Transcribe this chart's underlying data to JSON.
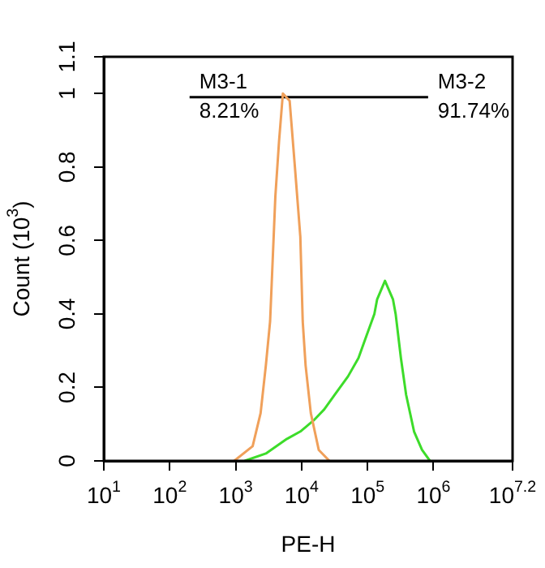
{
  "chart_data": {
    "type": "line",
    "xlabel": "PE-H",
    "ylabel": "Count (10$^{3}$)",
    "log": "x",
    "grid": false,
    "legend": false,
    "marker": "none",
    "line_style": "solid",
    "xlim": [
      10,
      15848932
    ],
    "xticks": [
      {
        "value": 10,
        "label": "10$^{1}$"
      },
      {
        "value": 100,
        "label": "10$^{2}$"
      },
      {
        "value": 1000,
        "label": "10$^{3}$"
      },
      {
        "value": 10000,
        "label": "10$^{4}$"
      },
      {
        "value": 100000,
        "label": "10$^{5}$"
      },
      {
        "value": 1000000,
        "label": "10$^{6}$"
      },
      {
        "value": 15848932,
        "label": "10$^{7.2}$"
      }
    ],
    "ylim": [
      0,
      1.1
    ],
    "yticks": [
      0,
      0.2,
      0.4,
      0.6,
      0.8,
      1,
      1.1
    ],
    "series": [
      {
        "color": "#f0a05a",
        "x": [
          950,
          1810,
          2390,
          2870,
          3330,
          4000,
          4550,
          5200,
          6590,
          7920,
          9570,
          10400,
          11500,
          13800,
          18200,
          26400
        ],
        "values": [
          0,
          0.04,
          0.13,
          0.26,
          0.38,
          0.72,
          0.87,
          1.0,
          0.98,
          0.8,
          0.61,
          0.38,
          0.26,
          0.13,
          0.03,
          0
        ]
      },
      {
        "color": "#3ddc2a",
        "x": [
          1370,
          2870,
          6000,
          9570,
          15200,
          22000,
          31700,
          50600,
          72900,
          96200,
          127000,
          140000,
          184000,
          243000,
          267000,
          321000,
          385000,
          508000,
          671000,
          885000
        ],
        "values": [
          0,
          0.02,
          0.06,
          0.08,
          0.11,
          0.14,
          0.18,
          0.23,
          0.28,
          0.34,
          0.4,
          0.44,
          0.49,
          0.44,
          0.4,
          0.28,
          0.18,
          0.08,
          0.03,
          0
        ]
      },
      {
        "color": "#000000",
        "x": [
          200,
          12000,
          830000
        ],
        "values": [
          0.99,
          0.99,
          0.99
        ]
      }
    ],
    "annotations": [
      {
        "text": "M3-1",
        "x": 200,
        "y": 0.99
      },
      "8.21%",
      {
        "text": "M3-2",
        "x": 830000,
        "y": 0.99
      },
      "91.74%"
    ]
  }
}
